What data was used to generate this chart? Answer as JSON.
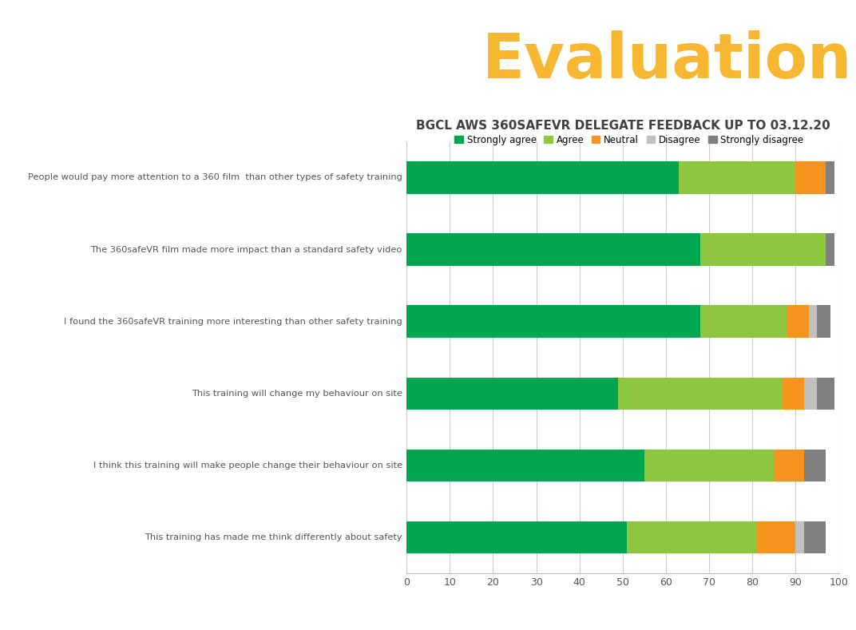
{
  "title": "BGCL AWS 360SAFEVR DELEGATE FEEDBACK UP TO 03.12.20",
  "categories": [
    "People would pay more attention to a 360 film  than other types of safety training",
    "The 360safeVR film made more impact than a standard safety video",
    "I found the 360safeVR training more interesting than other safety training",
    "This training will change my behaviour on site",
    "I think this training will make people change their behaviour on site",
    "This training has made me think differently about safety"
  ],
  "series": {
    "Strongly agree": [
      63,
      68,
      68,
      49,
      55,
      51
    ],
    "Agree": [
      27,
      29,
      20,
      38,
      30,
      30
    ],
    "Neutral": [
      7,
      0,
      5,
      5,
      7,
      9
    ],
    "Disagree": [
      0,
      0,
      2,
      3,
      0,
      2
    ],
    "Strongly disagree": [
      2,
      2,
      3,
      4,
      5,
      5
    ]
  },
  "colors": {
    "Strongly agree": "#00a550",
    "Agree": "#8dc63f",
    "Neutral": "#f7941d",
    "Disagree": "#c0c0c0",
    "Strongly disagree": "#808080"
  },
  "legend_order": [
    "Strongly agree",
    "Agree",
    "Neutral",
    "Disagree",
    "Strongly disagree"
  ],
  "xlim": [
    0,
    100
  ],
  "xticks": [
    0,
    10,
    20,
    30,
    40,
    50,
    60,
    70,
    80,
    90,
    100
  ],
  "header_bg": "#0d3349",
  "header_text": "Evaluation",
  "header_text_color": "#f7b731",
  "title_color": "#404040",
  "label_color": "#555555",
  "bar_height": 0.45,
  "figsize": [
    10.72,
    7.89
  ],
  "dpi": 100
}
